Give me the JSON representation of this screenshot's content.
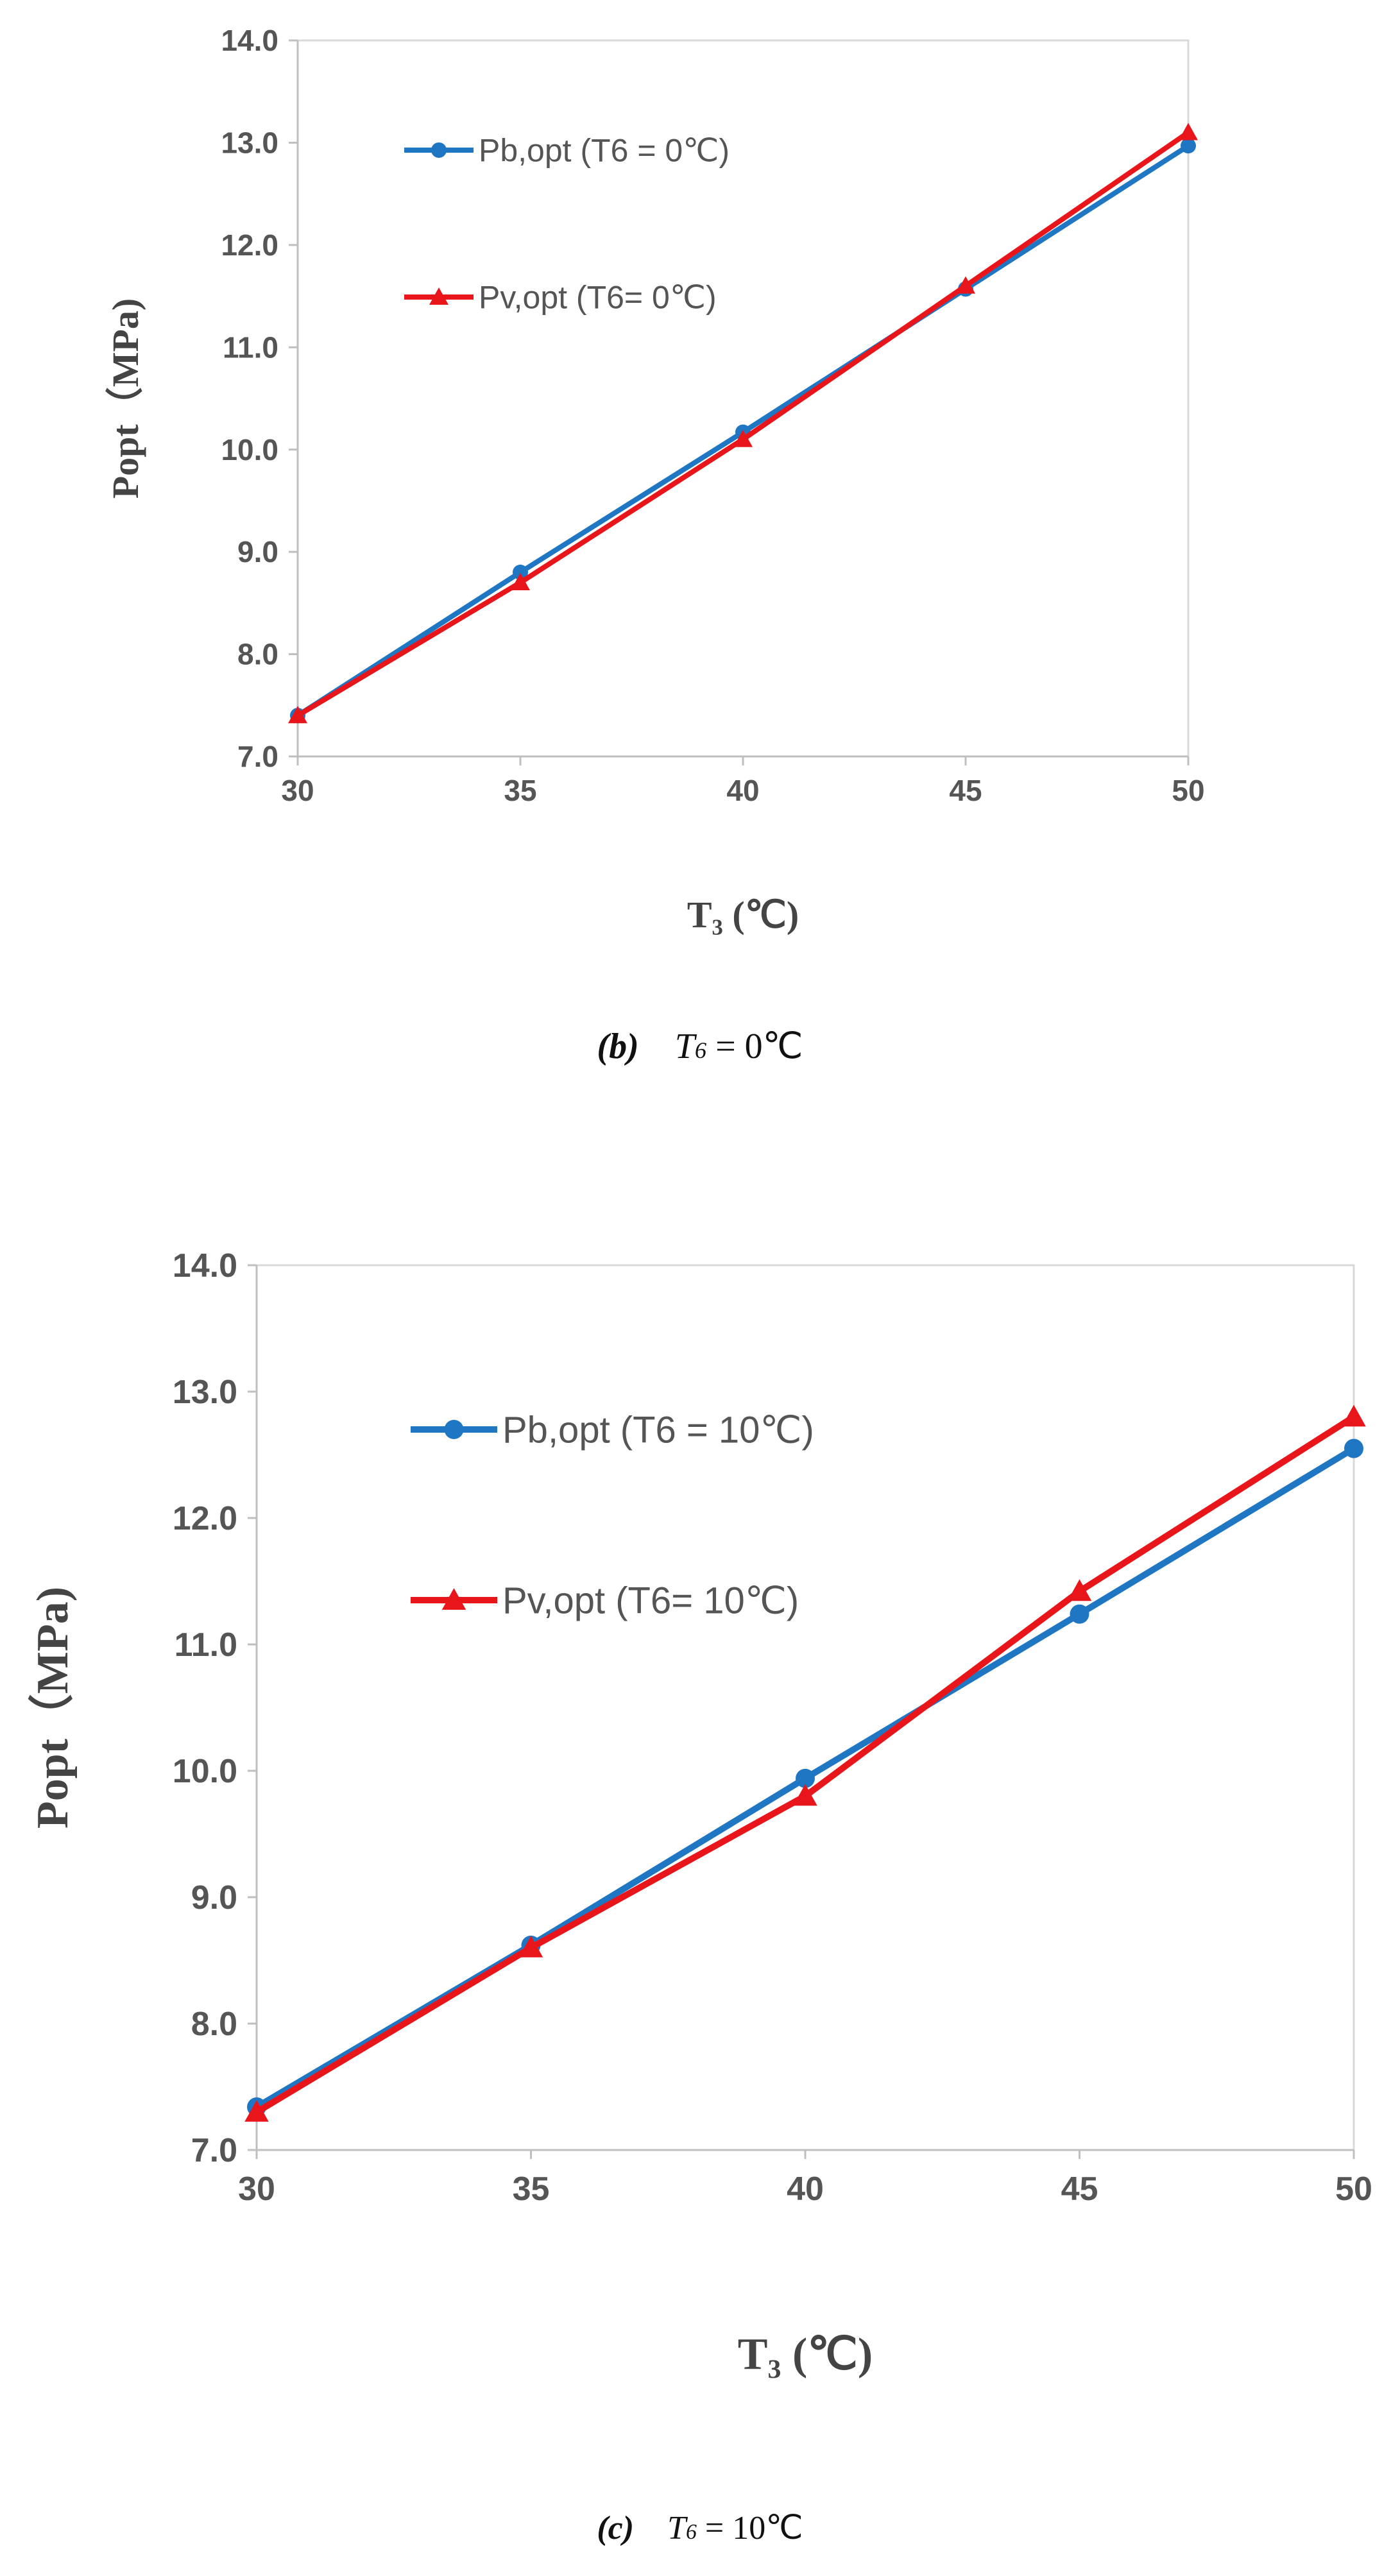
{
  "chart_data": [
    {
      "id": "b",
      "type": "line",
      "xlabel": "T₃ (℃)",
      "ylabel": "Popt（MPa)",
      "xlim": [
        30,
        50
      ],
      "ylim": [
        7.0,
        14.0
      ],
      "x_ticks": [
        "30",
        "35",
        "40",
        "45",
        "50"
      ],
      "y_ticks": [
        "7.0",
        "8.0",
        "9.0",
        "10.0",
        "11.0",
        "12.0",
        "13.0",
        "14.0"
      ],
      "legend": "top-left",
      "grid": false,
      "x": [
        30,
        35,
        40,
        45,
        50
      ],
      "series": [
        {
          "name": "Pb,opt (T6 = 0℃)",
          "color": "#1f77c4",
          "marker": "circle",
          "values": [
            7.4,
            8.8,
            10.17,
            11.57,
            12.97
          ]
        },
        {
          "name": "Pv,opt (T6= 0℃)",
          "color": "#e8161b",
          "marker": "triangle",
          "values": [
            7.4,
            8.7,
            10.1,
            11.6,
            13.1
          ]
        }
      ],
      "caption": {
        "tag": "(b)",
        "var": "T",
        "sub": "6",
        "value": " = 0℃"
      }
    },
    {
      "id": "c",
      "type": "line",
      "xlabel": "T₃ (℃)",
      "ylabel": "Popt（MPa)",
      "xlim": [
        30,
        50
      ],
      "ylim": [
        7.0,
        14.0
      ],
      "x_ticks": [
        "30",
        "35",
        "40",
        "45",
        "50"
      ],
      "y_ticks": [
        "7.0",
        "8.0",
        "9.0",
        "10.0",
        "11.0",
        "12.0",
        "13.0",
        "14.0"
      ],
      "legend": "top-left",
      "grid": false,
      "x": [
        30,
        35,
        40,
        45,
        50
      ],
      "series": [
        {
          "name": "Pb,opt (T6 = 10℃)",
          "color": "#1f77c4",
          "marker": "circle",
          "values": [
            7.34,
            8.62,
            9.94,
            11.24,
            12.55
          ]
        },
        {
          "name": "Pv,opt (T6= 10℃)",
          "color": "#e8161b",
          "marker": "triangle",
          "values": [
            7.3,
            8.6,
            9.8,
            11.42,
            12.8
          ]
        }
      ],
      "caption": {
        "tag": "(c)",
        "var": "T",
        "sub": "6",
        "value": " = 10℃"
      }
    }
  ]
}
